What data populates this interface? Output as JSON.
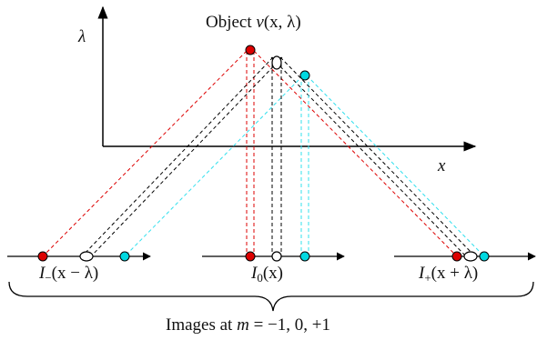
{
  "title": {
    "prefix": "Object ",
    "func": "v",
    "args": "(x, λ)"
  },
  "axes": {
    "vertical_label": "λ",
    "horizontal_label": "x"
  },
  "images": [
    {
      "id": "minus",
      "name": "I",
      "sub": "−",
      "args": "(x − λ)"
    },
    {
      "id": "zero",
      "name": "I",
      "sub": "0",
      "args": "(x)"
    },
    {
      "id": "plus",
      "name": "I",
      "sub": "+",
      "args": "(x + λ)"
    }
  ],
  "caption": {
    "text": "Images at ",
    "var": "m",
    "values": " = −1, 0, +1"
  },
  "colors": {
    "red": "#dd0000",
    "black": "#000000",
    "cyan": "#00d8e0",
    "cyan_line": "#33e0ee"
  }
}
